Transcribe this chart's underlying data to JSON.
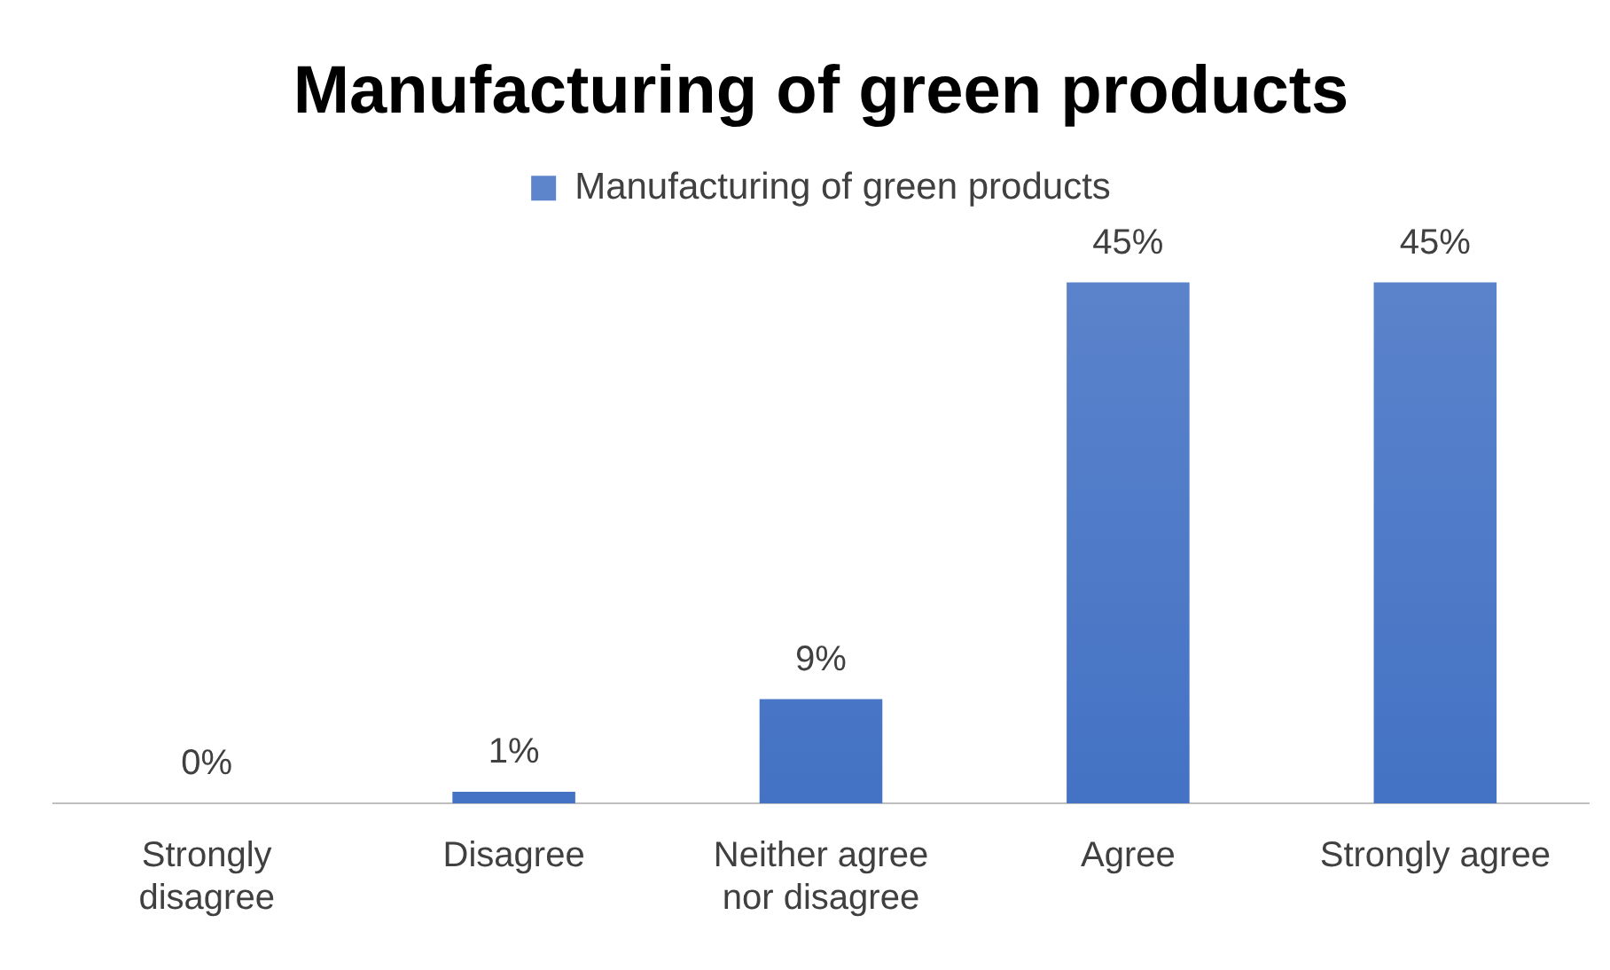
{
  "chart_data": {
    "type": "bar",
    "title": "Manufacturing of green products",
    "categories": [
      "Strongly disagree",
      "Disagree",
      "Neither agree nor disagree",
      "Agree",
      "Strongly agree"
    ],
    "series": [
      {
        "name": "Manufacturing of green products",
        "color": "#4472c4",
        "values": [
          0,
          1,
          9,
          45,
          45
        ],
        "value_labels": [
          "0%",
          "1%",
          "9%",
          "45%",
          "45%"
        ]
      }
    ],
    "legend": "top",
    "grid": false
  }
}
